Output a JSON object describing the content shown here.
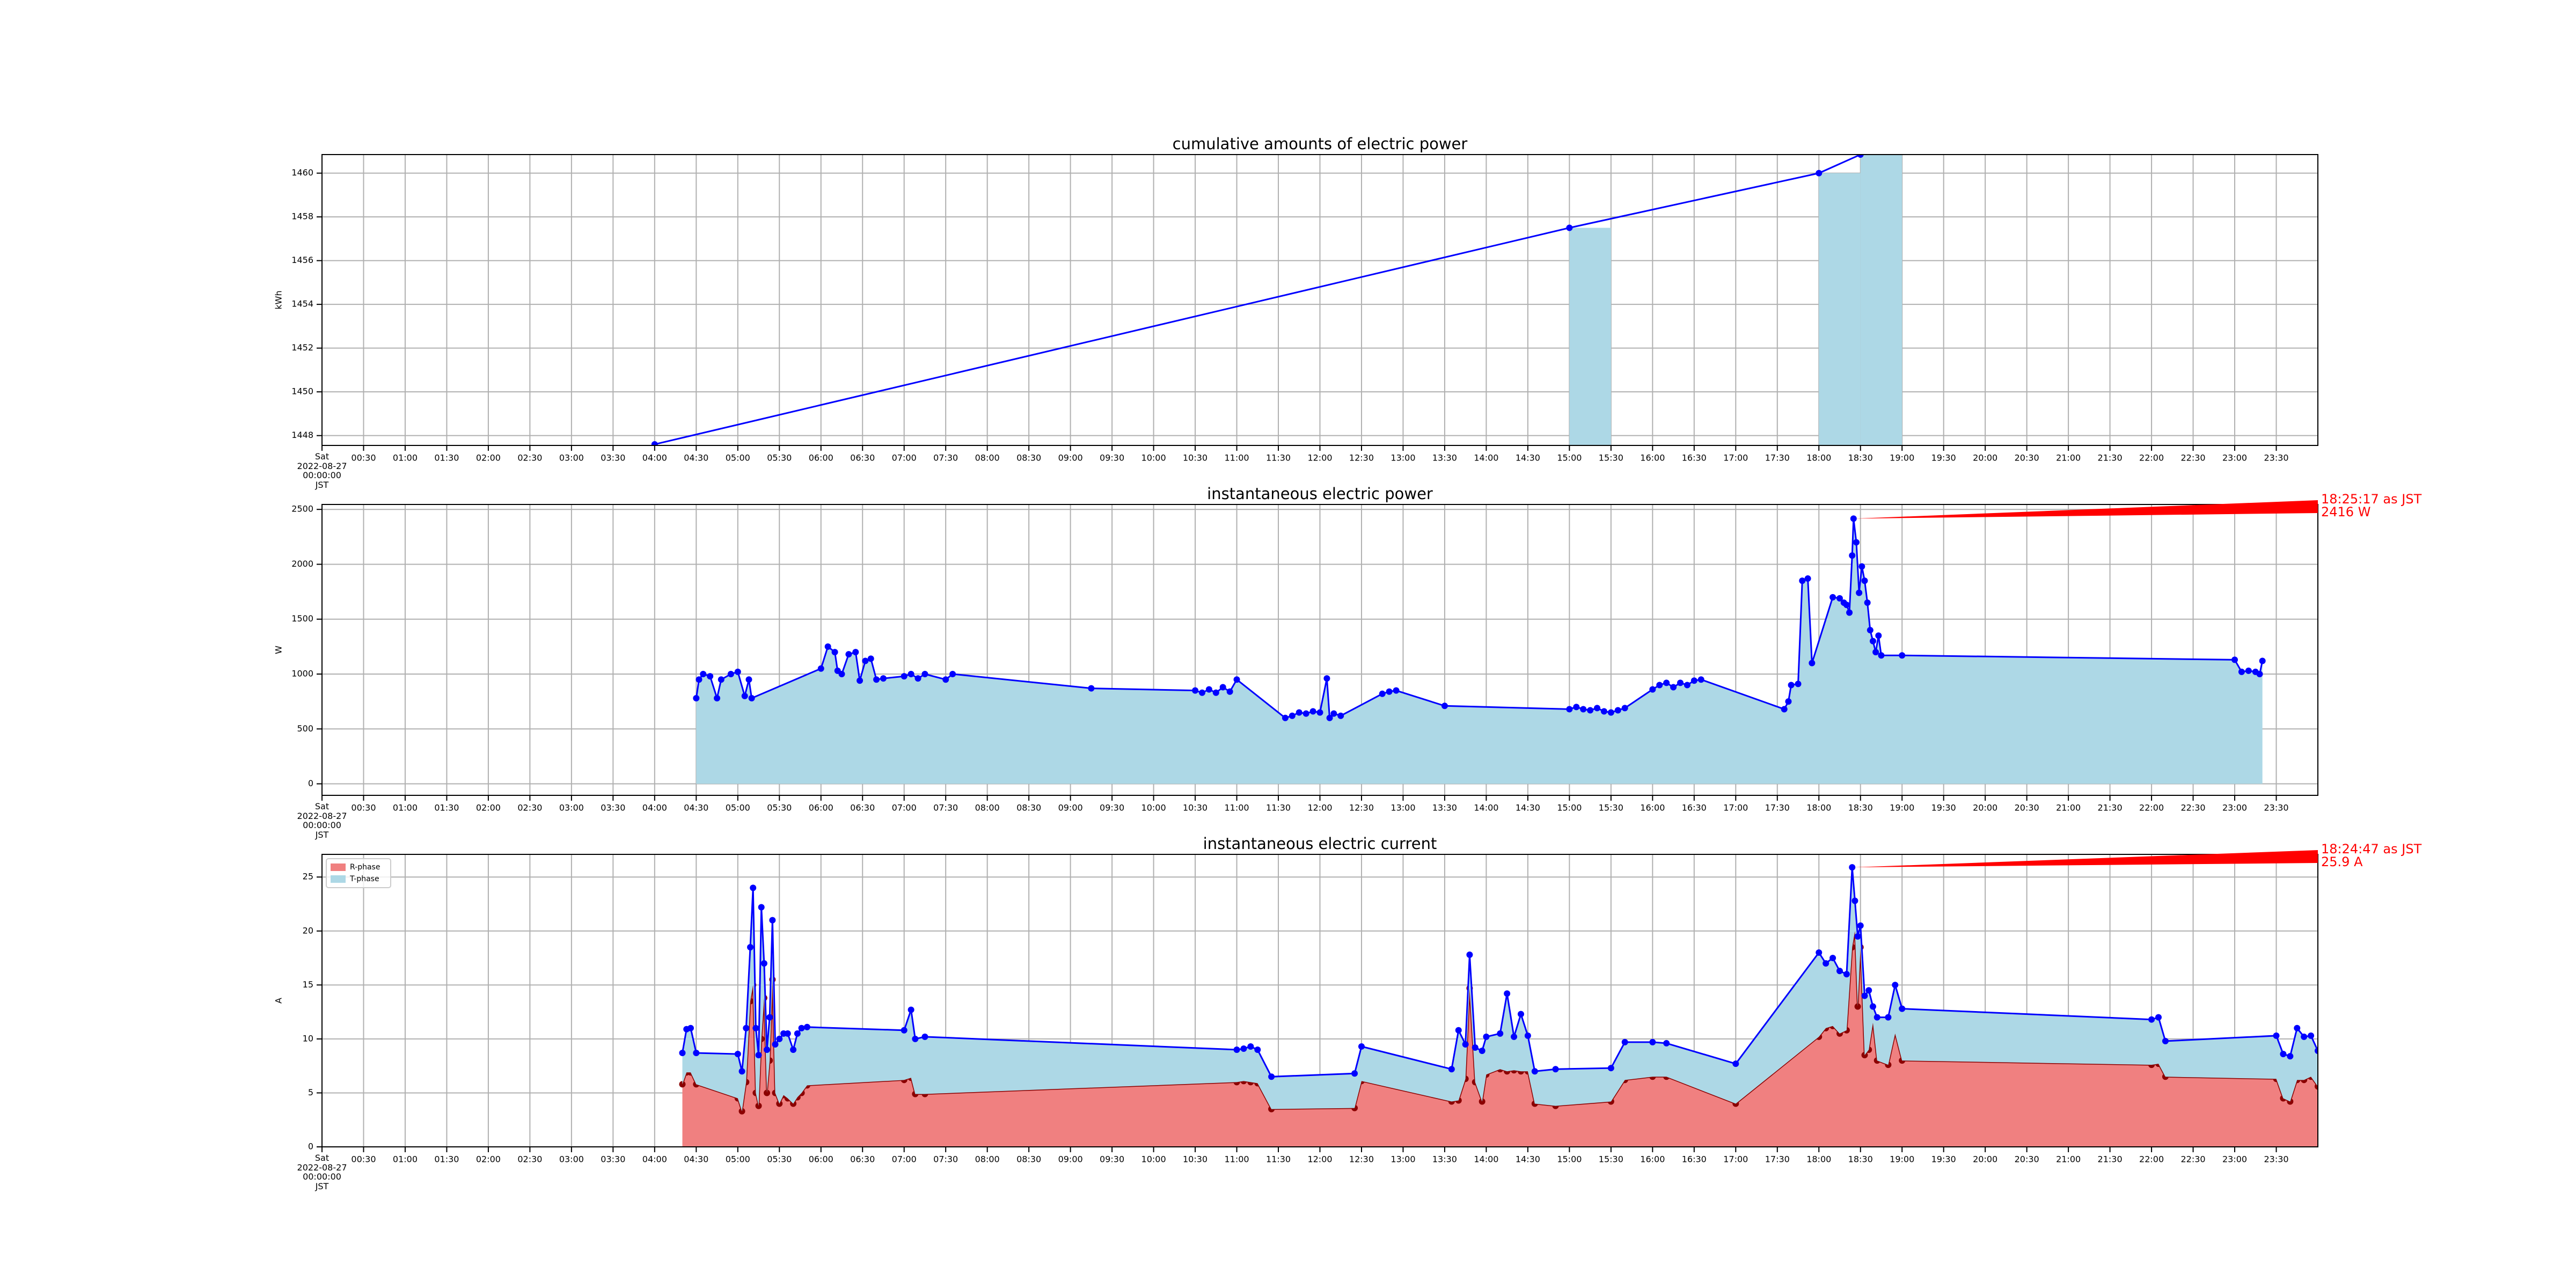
{
  "chart_data": [
    {
      "type": "line",
      "title": "cumulative amounts of electric power",
      "ylabel": "kWh",
      "xlim": [
        "00:00",
        "24:00"
      ],
      "xticks": [
        {
          "value": "00:00",
          "label": "Sat\n2022-08-27\n00:00:00\nJST"
        },
        "00:30",
        "01:00",
        "01:30",
        "02:00",
        "02:30",
        "03:00",
        "03:30",
        "04:00",
        "04:30",
        "05:00",
        "05:30",
        "06:00",
        "06:30",
        "07:00",
        "07:30",
        "08:00",
        "08:30",
        "09:00",
        "09:30",
        "10:00",
        "10:30",
        "11:00",
        "11:30",
        "12:00",
        "12:30",
        "13:00",
        "13:30",
        "14:00",
        "14:30",
        "15:00",
        "15:30",
        "16:00",
        "16:30",
        "17:00",
        "17:30",
        "18:00",
        "18:30",
        "19:00",
        "19:30",
        "20:00",
        "20:30",
        "21:00",
        "21:30",
        "22:00",
        "22:30",
        "23:00",
        "23:30"
      ],
      "ylim": [
        1447.55,
        1460.85
      ],
      "yticks": [
        1448,
        1450,
        1452,
        1454,
        1456,
        1458,
        1460
      ],
      "grid": true,
      "series": [
        {
          "type": "bar",
          "color": "#add8e6",
          "x": [
            "15:00",
            "18:00",
            "18:30"
          ],
          "values": [
            1457.5,
            1460.0,
            1460.85
          ]
        },
        {
          "type": "line",
          "color": "#0000ff",
          "x": [
            "04:00",
            "15:00",
            "18:00",
            "18:30"
          ],
          "values": [
            1447.6,
            1457.5,
            1460.0,
            1460.85
          ]
        }
      ]
    },
    {
      "type": "line",
      "title": "instantaneous electric power",
      "ylabel": "W",
      "xlim": [
        "00:00",
        "24:00"
      ],
      "xticks": [
        {
          "value": "00:00",
          "label": "Sat\n2022-08-27\n00:00:00\nJST"
        },
        "00:30",
        "01:00",
        "01:30",
        "02:00",
        "02:30",
        "03:00",
        "03:30",
        "04:00",
        "04:30",
        "05:00",
        "05:30",
        "06:00",
        "06:30",
        "07:00",
        "07:30",
        "08:00",
        "08:30",
        "09:00",
        "09:30",
        "10:00",
        "10:30",
        "11:00",
        "11:30",
        "12:00",
        "12:30",
        "13:00",
        "13:30",
        "14:00",
        "14:30",
        "15:00",
        "15:30",
        "16:00",
        "16:30",
        "17:00",
        "17:30",
        "18:00",
        "18:30",
        "19:00",
        "19:30",
        "20:00",
        "20:30",
        "21:00",
        "21:30",
        "22:00",
        "22:30",
        "23:00",
        "23:30"
      ],
      "ylim": [
        -105,
        2545
      ],
      "yticks": [
        0,
        500,
        1000,
        1500,
        2000,
        2500
      ],
      "grid": true,
      "annotation": {
        "text": "18:25:17 as JST\n2416 W",
        "x": "18:25:17",
        "y": 2416,
        "color": "#ff0000"
      },
      "series": [
        {
          "type": "area",
          "color": "#0000ff",
          "fill": "#add8e6",
          "x": [
            "04:30",
            "04:32",
            "04:35",
            "04:40",
            "04:45",
            "04:48",
            "04:55",
            "05:00",
            "05:05",
            "05:08",
            "05:10",
            "06:00",
            "06:05",
            "06:10",
            "06:12",
            "06:15",
            "06:20",
            "06:25",
            "06:28",
            "06:32",
            "06:36",
            "06:40",
            "06:45",
            "07:00",
            "07:05",
            "07:10",
            "07:15",
            "07:30",
            "07:35",
            "09:15",
            "10:30",
            "10:35",
            "10:40",
            "10:45",
            "10:50",
            "10:55",
            "11:00",
            "11:35",
            "11:40",
            "11:45",
            "11:50",
            "11:55",
            "12:00",
            "12:05",
            "12:07",
            "12:10",
            "12:15",
            "12:45",
            "12:50",
            "12:55",
            "13:30",
            "15:00",
            "15:05",
            "15:10",
            "15:15",
            "15:20",
            "15:25",
            "15:30",
            "15:35",
            "15:40",
            "16:00",
            "16:05",
            "16:10",
            "16:15",
            "16:20",
            "16:25",
            "16:30",
            "16:35",
            "17:35",
            "17:38",
            "17:40",
            "17:45",
            "17:48",
            "17:52",
            "17:55",
            "18:10",
            "18:15",
            "18:18",
            "18:20",
            "18:22",
            "18:24",
            "18:25",
            "18:27",
            "18:29",
            "18:31",
            "18:33",
            "18:35",
            "18:37",
            "18:39",
            "18:41",
            "18:43",
            "18:45",
            "19:00",
            "23:00",
            "23:05",
            "23:10",
            "23:15",
            "23:18",
            "23:20"
          ],
          "values": [
            780,
            950,
            1000,
            980,
            780,
            950,
            1000,
            1020,
            800,
            950,
            780,
            1050,
            1250,
            1200,
            1030,
            1000,
            1180,
            1200,
            940,
            1120,
            1140,
            950,
            960,
            980,
            1000,
            960,
            1000,
            950,
            1000,
            870,
            850,
            830,
            860,
            830,
            880,
            840,
            950,
            600,
            620,
            650,
            640,
            660,
            650,
            960,
            600,
            640,
            620,
            820,
            840,
            850,
            710,
            680,
            700,
            680,
            670,
            690,
            660,
            650,
            670,
            690,
            860,
            900,
            920,
            880,
            920,
            900,
            940,
            950,
            680,
            750,
            900,
            910,
            1850,
            1870,
            1100,
            1700,
            1690,
            1650,
            1630,
            1560,
            2080,
            2416,
            2200,
            1740,
            1980,
            1850,
            1650,
            1400,
            1300,
            1200,
            1350,
            1170,
            1170,
            1130,
            1020,
            1030,
            1020,
            1000,
            1120
          ]
        }
      ]
    },
    {
      "type": "line",
      "title": "instantaneous electric current",
      "ylabel": "A",
      "xlim": [
        "00:00",
        "24:00"
      ],
      "xticks": [
        {
          "value": "00:00",
          "label": "Sat\n2022-08-27\n00:00:00\nJST"
        },
        "00:30",
        "01:00",
        "01:30",
        "02:00",
        "02:30",
        "03:00",
        "03:30",
        "04:00",
        "04:30",
        "05:00",
        "05:30",
        "06:00",
        "06:30",
        "07:00",
        "07:30",
        "08:00",
        "08:30",
        "09:00",
        "09:30",
        "10:00",
        "10:30",
        "11:00",
        "11:30",
        "12:00",
        "12:30",
        "13:00",
        "13:30",
        "14:00",
        "14:30",
        "15:00",
        "15:30",
        "16:00",
        "16:30",
        "17:00",
        "17:30",
        "18:00",
        "18:30",
        "19:00",
        "19:30",
        "20:00",
        "20:30",
        "21:00",
        "21:30",
        "22:00",
        "22:30",
        "23:00",
        "23:30"
      ],
      "ylim": [
        0,
        27.1
      ],
      "yticks": [
        0,
        5,
        10,
        15,
        20,
        25
      ],
      "grid": true,
      "stacked": true,
      "legend": "upper left",
      "annotation": {
        "text": "18:24:47 as JST\n25.9 A",
        "x": "18:24:47",
        "y": 25.9,
        "color": "#ff0000"
      },
      "x": [
        "04:20",
        "04:23",
        "04:26",
        "04:30",
        "05:00",
        "05:03",
        "05:06",
        "05:09",
        "05:11",
        "05:13",
        "05:15",
        "05:17",
        "05:19",
        "05:21",
        "05:23",
        "05:25",
        "05:27",
        "05:30",
        "05:33",
        "05:36",
        "05:40",
        "05:43",
        "05:46",
        "05:50",
        "07:00",
        "07:05",
        "07:08",
        "07:15",
        "11:00",
        "11:05",
        "11:10",
        "11:15",
        "11:25",
        "12:25",
        "12:30",
        "13:35",
        "13:40",
        "13:45",
        "13:48",
        "13:52",
        "13:57",
        "14:00",
        "14:10",
        "14:15",
        "14:20",
        "14:25",
        "14:30",
        "14:35",
        "14:50",
        "15:30",
        "15:40",
        "16:00",
        "16:10",
        "17:00",
        "18:00",
        "18:05",
        "18:10",
        "18:15",
        "18:20",
        "18:24",
        "18:26",
        "18:28",
        "18:30",
        "18:33",
        "18:36",
        "18:39",
        "18:42",
        "18:50",
        "18:55",
        "19:00",
        "22:00",
        "22:05",
        "22:10",
        "23:30",
        "23:35",
        "23:40",
        "23:45",
        "23:50",
        "23:55",
        "24:00"
      ],
      "series": [
        {
          "name": "R-phase",
          "type": "area",
          "color": "#8b0000",
          "fill": "#f08080",
          "values": [
            5.8,
            6.9,
            6.9,
            5.8,
            4.5,
            3.3,
            6.0,
            13.5,
            15.0,
            5.0,
            3.8,
            10.0,
            13.8,
            5.0,
            8.0,
            15.5,
            5.0,
            4.0,
            4.8,
            4.5,
            4.0,
            4.6,
            5.0,
            5.7,
            6.2,
            6.4,
            4.9,
            4.9,
            6.0,
            6.1,
            6.0,
            5.9,
            3.5,
            3.6,
            6.1,
            4.2,
            4.3,
            6.3,
            14.7,
            6.0,
            4.2,
            6.7,
            7.2,
            7.0,
            7.1,
            7.0,
            7.0,
            4.0,
            3.8,
            4.2,
            6.2,
            6.5,
            6.5,
            4.0,
            10.2,
            11.0,
            11.2,
            10.5,
            10.8,
            18.5,
            20.0,
            13.0,
            18.5,
            8.5,
            9.0,
            11.5,
            8.0,
            7.6,
            10.5,
            8.0,
            7.6,
            7.7,
            6.5,
            6.3,
            4.5,
            4.2,
            6.2,
            6.2,
            6.5,
            5.6
          ]
        },
        {
          "name": "T-phase",
          "type": "area",
          "color": "#0000ff",
          "fill": "#add8e6",
          "values": [
            2.9,
            4.0,
            4.1,
            2.9,
            4.1,
            3.7,
            5.0,
            5.0,
            9.0,
            6.0,
            4.7,
            12.2,
            3.2,
            4.0,
            4.0,
            5.5,
            4.5,
            6.0,
            5.7,
            6.0,
            5.0,
            5.9,
            6.0,
            5.4,
            4.6,
            6.3,
            5.1,
            5.3,
            3.0,
            3.0,
            3.3,
            3.1,
            3.0,
            3.2,
            3.2,
            3.0,
            6.5,
            3.2,
            3.1,
            3.2,
            4.7,
            3.5,
            3.3,
            7.2,
            3.1,
            5.3,
            3.3,
            3.0,
            3.4,
            3.1,
            3.5,
            3.2,
            3.1,
            3.7,
            7.8,
            6.0,
            6.3,
            5.8,
            5.2,
            7.4,
            2.8,
            6.5,
            2.0,
            5.5,
            5.5,
            1.5,
            4.0,
            4.4,
            4.5,
            4.8,
            4.2,
            4.3,
            3.3,
            4.0,
            4.1,
            4.2,
            4.8,
            4.0,
            3.8,
            3.3
          ]
        }
      ]
    }
  ]
}
